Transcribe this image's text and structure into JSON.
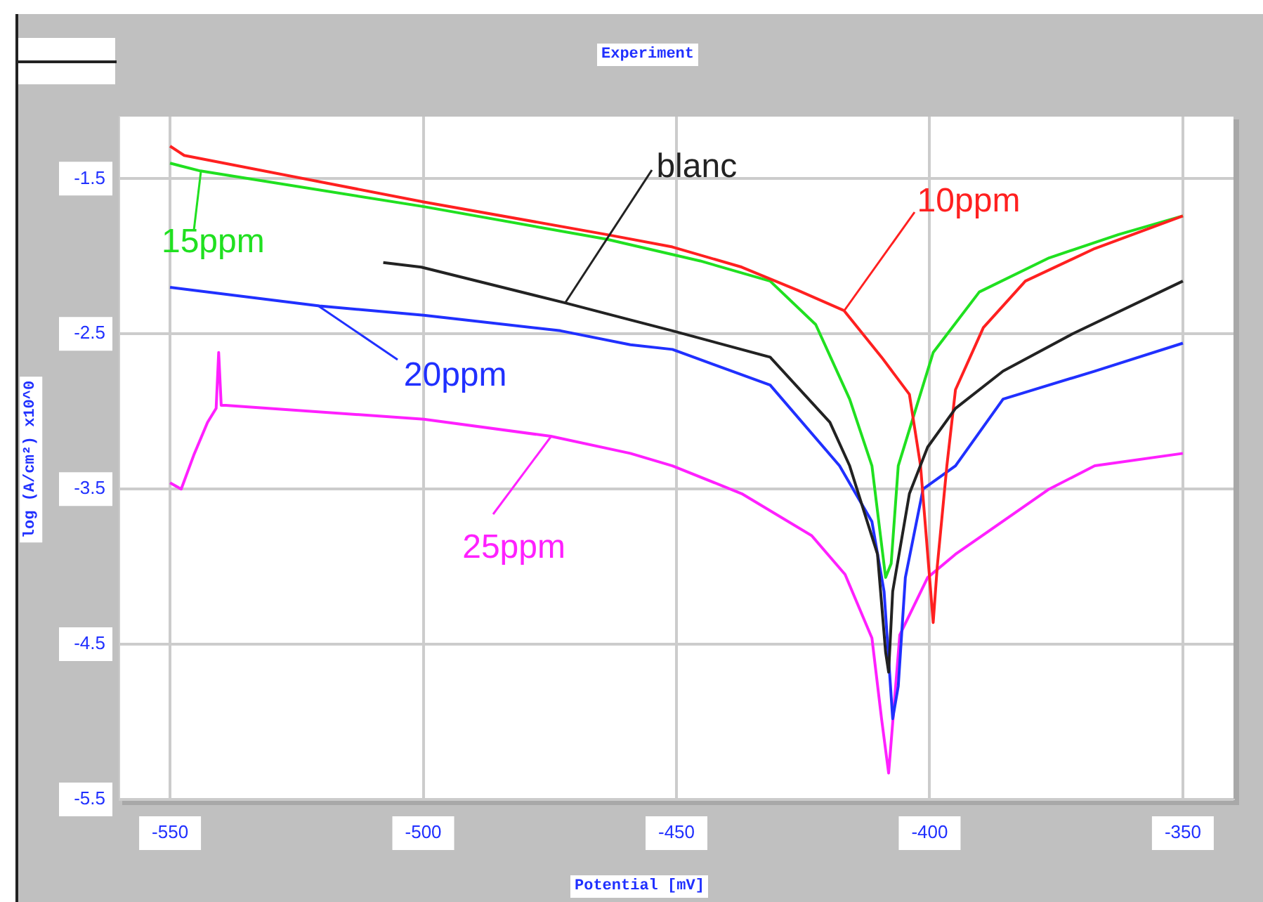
{
  "chart_data": {
    "type": "line",
    "title": "Experiment",
    "xlabel": "Potential [mV]",
    "ylabel": "log (A/cm²) x10^0",
    "xlim": [
      -560,
      -340
    ],
    "ylim": [
      -5.5,
      -1.1
    ],
    "xticks": [
      -550,
      -500,
      -450,
      -400,
      -350
    ],
    "yticks": [
      -1.5,
      -2.5,
      -3.5,
      -4.5,
      -5.5
    ],
    "grid": true,
    "legend": "top left",
    "marker": "none",
    "line_style": "solid",
    "series": [
      {
        "name": "blanc",
        "color": "#222222",
        "x": [
          -507.9,
          -500.4,
          -472,
          -459.1,
          -450.8,
          -431.5,
          -419.7,
          -415.8,
          -410.3,
          -408.7,
          -408.1,
          -407.3,
          -404,
          -400.4,
          -394.9,
          -385.5,
          -371.8,
          -350
        ],
        "values": [
          -2.04,
          -2.07,
          -2.3,
          -2.41,
          -2.48,
          -2.65,
          -3.07,
          -3.35,
          -3.92,
          -4.55,
          -4.68,
          -4.16,
          -3.53,
          -3.23,
          -2.98,
          -2.74,
          -2.5,
          -2.16
        ]
      },
      {
        "name": "10ppm",
        "color": "#ff2020",
        "x": [
          -550,
          -547.2,
          -499.9,
          -463.8,
          -450.8,
          -437.1,
          -426,
          -416.9,
          -409.5,
          -404,
          -401.8,
          -399.3,
          -398.5,
          -396.6,
          -394.9,
          -389.4,
          -381.1,
          -367.4,
          -350
        ],
        "values": [
          -1.29,
          -1.35,
          -1.65,
          -1.86,
          -1.94,
          -2.07,
          -2.22,
          -2.35,
          -2.65,
          -2.89,
          -3.35,
          -4.36,
          -4,
          -3.35,
          -2.86,
          -2.46,
          -2.16,
          -1.95,
          -1.74
        ]
      },
      {
        "name": "15ppm",
        "color": "#20e020",
        "x": [
          -550,
          -544,
          -499.9,
          -463.8,
          -445.3,
          -431.5,
          -422.5,
          -415.8,
          -411.4,
          -408.7,
          -407.6,
          -406.2,
          -399.3,
          -390.2,
          -376.4,
          -362.7,
          -350
        ],
        "values": [
          -1.4,
          -1.45,
          -1.68,
          -1.89,
          -2.03,
          -2.16,
          -2.44,
          -2.92,
          -3.35,
          -4.07,
          -3.98,
          -3.35,
          -2.62,
          -2.23,
          -2.01,
          -1.86,
          -1.74
        ]
      },
      {
        "name": "20ppm",
        "color": "#2030ff",
        "x": [
          -550,
          -520.5,
          -499.9,
          -472.9,
          -459.1,
          -450.8,
          -431.5,
          -417.8,
          -411.4,
          -409,
          -407.3,
          -406.2,
          -404.8,
          -401.3,
          -394.9,
          -385.5,
          -367.4,
          -350
        ],
        "values": [
          -2.2,
          -2.32,
          -2.38,
          -2.48,
          -2.57,
          -2.6,
          -2.83,
          -3.35,
          -3.71,
          -4.16,
          -4.98,
          -4.77,
          -4.07,
          -3.5,
          -3.35,
          -2.92,
          -2.74,
          -2.56
        ]
      },
      {
        "name": "25ppm",
        "color": "#ff20ff",
        "x": [
          -550,
          -547.8,
          -545.3,
          -542.6,
          -540.9,
          -540.4,
          -539.9,
          -539,
          -499.9,
          -474.8,
          -459.1,
          -450.8,
          -437.1,
          -423.3,
          -416.7,
          -411.4,
          -409.5,
          -408.1,
          -405.9,
          -400.4,
          -394.9,
          -376.4,
          -367.4,
          -350
        ],
        "values": [
          -3.46,
          -3.5,
          -3.28,
          -3.07,
          -2.98,
          -2.62,
          -2.96,
          -2.96,
          -3.05,
          -3.16,
          -3.27,
          -3.35,
          -3.53,
          -3.8,
          -4.05,
          -4.46,
          -4.98,
          -5.33,
          -4.44,
          -4.07,
          -3.92,
          -3.5,
          -3.35,
          -3.27
        ]
      }
    ]
  }
}
